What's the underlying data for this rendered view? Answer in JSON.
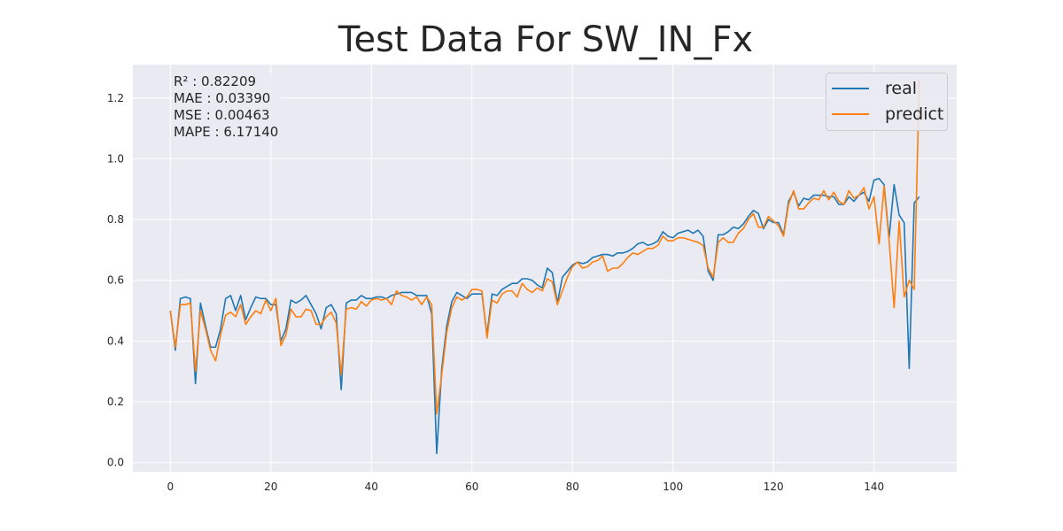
{
  "chart_data": {
    "type": "line",
    "title": "Test Data For SW_IN_Fx",
    "xlabel": "",
    "ylabel": "",
    "xlim": [
      -7.45,
      156.45
    ],
    "ylim": [
      -0.03,
      1.31
    ],
    "xticks": [
      0,
      20,
      40,
      60,
      80,
      100,
      120,
      140
    ],
    "yticks": [
      0.0,
      0.2,
      0.4,
      0.6,
      0.8,
      1.0,
      1.2
    ],
    "ytick_labels": [
      "0.0",
      "0.2",
      "0.4",
      "0.6",
      "0.8",
      "1.0",
      "1.2"
    ],
    "grid": true,
    "legend_position": "top-right",
    "annotations": [
      "R² : 0.82209",
      "MAE : 0.03390",
      "MSE : 0.00463",
      "MAPE : 6.17140"
    ],
    "series": [
      {
        "name": "real",
        "color": "#1f77b4",
        "values": [
          0.5,
          0.37,
          0.54,
          0.545,
          0.54,
          0.26,
          0.525,
          0.45,
          0.38,
          0.38,
          0.44,
          0.54,
          0.55,
          0.5,
          0.55,
          0.47,
          0.51,
          0.545,
          0.54,
          0.54,
          0.52,
          0.52,
          0.4,
          0.44,
          0.535,
          0.525,
          0.535,
          0.55,
          0.52,
          0.49,
          0.44,
          0.51,
          0.52,
          0.49,
          0.24,
          0.525,
          0.535,
          0.535,
          0.55,
          0.54,
          0.54,
          0.545,
          0.545,
          0.54,
          0.55,
          0.555,
          0.56,
          0.56,
          0.56,
          0.55,
          0.55,
          0.55,
          0.49,
          0.03,
          0.31,
          0.45,
          0.53,
          0.56,
          0.55,
          0.54,
          0.555,
          0.555,
          0.555,
          0.42,
          0.555,
          0.55,
          0.57,
          0.58,
          0.59,
          0.59,
          0.605,
          0.605,
          0.6,
          0.585,
          0.575,
          0.64,
          0.625,
          0.525,
          0.61,
          0.63,
          0.65,
          0.66,
          0.655,
          0.66,
          0.675,
          0.68,
          0.685,
          0.685,
          0.68,
          0.69,
          0.69,
          0.695,
          0.705,
          0.72,
          0.725,
          0.715,
          0.72,
          0.73,
          0.76,
          0.745,
          0.74,
          0.755,
          0.76,
          0.765,
          0.755,
          0.765,
          0.745,
          0.63,
          0.6,
          0.75,
          0.75,
          0.76,
          0.775,
          0.77,
          0.785,
          0.81,
          0.83,
          0.82,
          0.77,
          0.8,
          0.79,
          0.79,
          0.75,
          0.86,
          0.89,
          0.845,
          0.87,
          0.865,
          0.88,
          0.88,
          0.88,
          0.875,
          0.875,
          0.85,
          0.85,
          0.875,
          0.86,
          0.88,
          0.89,
          0.86,
          0.93,
          0.935,
          0.915,
          0.74,
          0.915,
          0.815,
          0.79,
          0.31,
          0.855,
          0.875
        ]
      },
      {
        "name": "predict",
        "color": "#ff7f0e",
        "values": [
          0.5,
          0.38,
          0.52,
          0.52,
          0.525,
          0.3,
          0.5,
          0.44,
          0.37,
          0.335,
          0.42,
          0.485,
          0.495,
          0.48,
          0.52,
          0.455,
          0.48,
          0.5,
          0.49,
          0.535,
          0.5,
          0.54,
          0.385,
          0.42,
          0.505,
          0.48,
          0.48,
          0.505,
          0.5,
          0.455,
          0.455,
          0.48,
          0.495,
          0.46,
          0.29,
          0.505,
          0.51,
          0.505,
          0.53,
          0.515,
          0.535,
          0.54,
          0.535,
          0.54,
          0.52,
          0.565,
          0.55,
          0.545,
          0.535,
          0.545,
          0.52,
          0.545,
          0.52,
          0.16,
          0.29,
          0.43,
          0.51,
          0.545,
          0.535,
          0.545,
          0.57,
          0.57,
          0.565,
          0.41,
          0.535,
          0.525,
          0.555,
          0.565,
          0.565,
          0.545,
          0.59,
          0.57,
          0.56,
          0.575,
          0.565,
          0.605,
          0.595,
          0.52,
          0.565,
          0.61,
          0.645,
          0.66,
          0.64,
          0.645,
          0.66,
          0.665,
          0.68,
          0.63,
          0.64,
          0.64,
          0.655,
          0.675,
          0.69,
          0.685,
          0.695,
          0.705,
          0.705,
          0.715,
          0.745,
          0.73,
          0.73,
          0.74,
          0.74,
          0.735,
          0.73,
          0.725,
          0.715,
          0.64,
          0.61,
          0.725,
          0.74,
          0.725,
          0.725,
          0.755,
          0.77,
          0.8,
          0.82,
          0.775,
          0.775,
          0.81,
          0.795,
          0.78,
          0.745,
          0.85,
          0.895,
          0.835,
          0.835,
          0.855,
          0.87,
          0.865,
          0.895,
          0.865,
          0.89,
          0.86,
          0.85,
          0.895,
          0.87,
          0.88,
          0.905,
          0.835,
          0.875,
          0.72,
          0.91,
          0.73,
          0.51,
          0.795,
          0.545,
          0.6,
          0.57,
          1.26
        ]
      }
    ]
  }
}
